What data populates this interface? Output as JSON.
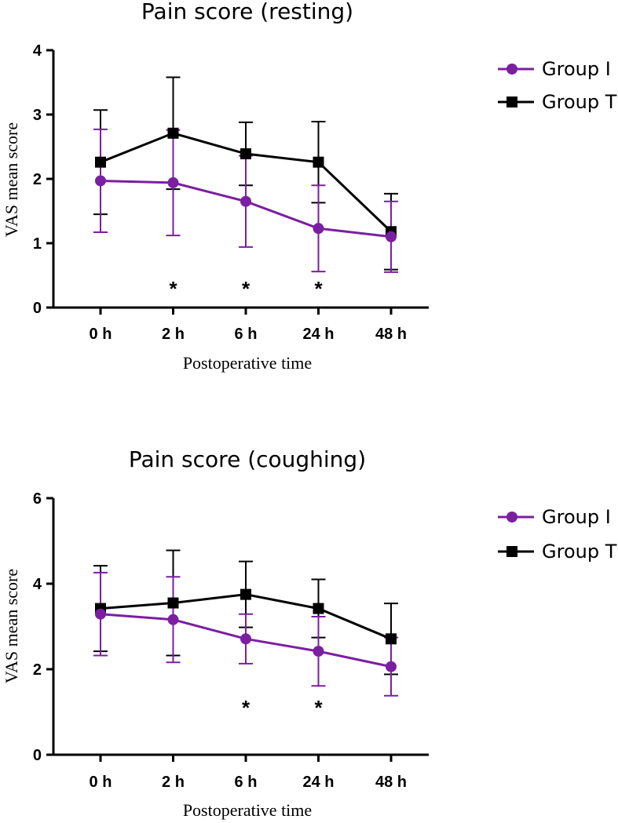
{
  "chart_data": [
    {
      "type": "line",
      "title": "Pain score (resting)",
      "xlabel": "Postoperative time",
      "ylabel": "VAS mean score",
      "categories": [
        "0 h",
        "2 h",
        "6 h",
        "24 h",
        "48 h"
      ],
      "ylim": [
        0,
        4
      ],
      "yticks": [
        "0",
        "1",
        "2",
        "3",
        "4"
      ],
      "series": [
        {
          "name": "Group T",
          "color": "#000000",
          "marker": "square",
          "values": [
            2.26,
            2.71,
            2.39,
            2.26,
            1.18
          ],
          "error": [
            0.81,
            0.87,
            0.49,
            0.63,
            0.59
          ]
        },
        {
          "name": "Group I",
          "color": "#7b1fa2",
          "marker": "circle",
          "values": [
            1.97,
            1.94,
            1.65,
            1.23,
            1.1
          ],
          "error": [
            0.8,
            0.82,
            0.71,
            0.67,
            0.55
          ]
        }
      ],
      "significance": [
        "",
        "*",
        "*",
        "*",
        ""
      ]
    },
    {
      "type": "line",
      "title": "Pain score (coughing)",
      "xlabel": "Postoperative time",
      "ylabel": "VAS mean score",
      "categories": [
        "0 h",
        "2 h",
        "6 h",
        "24 h",
        "48 h"
      ],
      "ylim": [
        0,
        6
      ],
      "yticks": [
        "0",
        "2",
        "4",
        "6"
      ],
      "series": [
        {
          "name": "Group T",
          "color": "#000000",
          "marker": "square",
          "values": [
            3.42,
            3.55,
            3.75,
            3.42,
            2.71
          ],
          "error": [
            1.0,
            1.23,
            0.77,
            0.68,
            0.83
          ]
        },
        {
          "name": "Group I",
          "color": "#7b1fa2",
          "marker": "circle",
          "values": [
            3.29,
            3.16,
            2.71,
            2.42,
            2.06
          ],
          "error": [
            0.97,
            1.0,
            0.58,
            0.81,
            0.68
          ]
        }
      ],
      "significance": [
        "",
        "",
        "*",
        "*",
        ""
      ]
    }
  ],
  "legend": {
    "items": [
      {
        "name": "Group I",
        "color": "#7b1fa2",
        "marker": "circle"
      },
      {
        "name": "Group T",
        "color": "#000000",
        "marker": "square"
      }
    ]
  }
}
